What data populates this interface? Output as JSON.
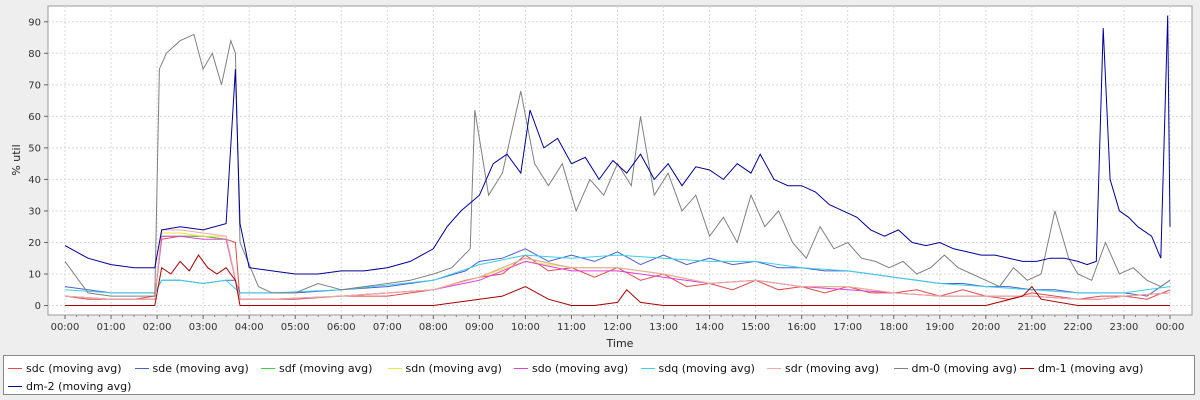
{
  "chart_data": {
    "type": "line",
    "title": "",
    "xlabel": "Time",
    "ylabel": "% util",
    "xlim": [
      0,
      24.2
    ],
    "ylim": [
      -3,
      95
    ],
    "grid": true,
    "legend_position": "bottom",
    "x_ticks": [
      "00:00",
      "01:00",
      "02:00",
      "03:00",
      "04:00",
      "05:00",
      "06:00",
      "07:00",
      "08:00",
      "09:00",
      "10:00",
      "11:00",
      "12:00",
      "13:00",
      "14:00",
      "15:00",
      "16:00",
      "17:00",
      "18:00",
      "19:00",
      "20:00",
      "21:00",
      "22:00",
      "23:00",
      "00:00"
    ],
    "y_ticks": [
      0,
      10,
      20,
      30,
      40,
      50,
      60,
      70,
      80,
      90
    ],
    "series": [
      {
        "name": "sdc (moving avg)",
        "color": "#e34a4a",
        "x": [
          0,
          0.5,
          1,
          1.5,
          1.95,
          2.1,
          2.5,
          3,
          3.5,
          3.7,
          3.8,
          4.5,
          5,
          6,
          7,
          8,
          8.7,
          9,
          9.5,
          10,
          10.5,
          11,
          11.5,
          12,
          12.5,
          13,
          13.5,
          14,
          14.5,
          15,
          15.5,
          16,
          16.5,
          17,
          17.5,
          18,
          18.5,
          19,
          19.5,
          20,
          20.5,
          21,
          21.5,
          22,
          22.5,
          23,
          23.5,
          24
        ],
        "y": [
          3,
          2,
          2,
          2,
          3,
          21,
          22,
          22,
          21,
          20,
          2,
          2,
          2,
          3,
          3,
          5,
          8,
          9,
          10,
          16,
          11,
          12,
          9,
          12,
          8,
          10,
          6,
          7,
          5,
          8,
          5,
          6,
          4,
          6,
          4,
          4,
          5,
          3,
          5,
          3,
          2,
          4,
          3,
          2,
          3,
          3,
          2,
          5
        ]
      },
      {
        "name": "sde (moving avg)",
        "color": "#4a5fd0",
        "x": [
          0,
          0.5,
          1,
          1.5,
          1.95,
          2.1,
          2.5,
          3,
          3.5,
          3.7,
          3.8,
          4.5,
          5,
          6,
          7,
          8,
          8.7,
          9,
          9.5,
          10,
          10.5,
          11,
          11.5,
          12,
          12.5,
          13,
          13.5,
          14,
          14.5,
          15,
          15.5,
          16,
          16.5,
          17,
          17.5,
          18,
          18.5,
          19,
          19.5,
          20,
          20.5,
          21,
          21.5,
          22,
          22.5,
          23,
          23.5,
          24
        ],
        "y": [
          6,
          5,
          4,
          4,
          4,
          8,
          8,
          7,
          8,
          8,
          4,
          4,
          4,
          5,
          6,
          8,
          11,
          14,
          15,
          18,
          14,
          16,
          14,
          17,
          13,
          16,
          13,
          15,
          13,
          14,
          12,
          12,
          11,
          11,
          10,
          9,
          8,
          7,
          7,
          6,
          6,
          5,
          5,
          4,
          4,
          4,
          3,
          8
        ]
      },
      {
        "name": "sdf (moving avg)",
        "color": "#3ed13e",
        "x": [
          0,
          1,
          1.95,
          2.1,
          2.5,
          3,
          3.5,
          3.8,
          4.5,
          6,
          8,
          9,
          10,
          11,
          12,
          13,
          14,
          15,
          16,
          17,
          18,
          19,
          20,
          21,
          22,
          22.5,
          23,
          24
        ],
        "y": [
          3,
          2,
          2,
          22,
          22,
          22,
          21,
          2,
          2,
          3,
          5,
          9,
          15,
          12,
          12,
          10,
          7,
          8,
          6,
          6,
          4,
          3,
          3,
          3,
          2,
          2,
          3,
          4
        ]
      },
      {
        "name": "sdn (moving avg)",
        "color": "#e8e83a",
        "x": [
          0,
          1,
          1.95,
          2.1,
          2.5,
          3,
          3.5,
          3.8,
          4.5,
          6,
          8,
          9,
          10,
          11,
          12,
          13,
          14,
          15,
          16,
          17,
          18,
          19,
          20,
          21,
          22,
          22.5,
          23,
          24
        ],
        "y": [
          3,
          2,
          2,
          23,
          23,
          22,
          22,
          2,
          2,
          3,
          5,
          9,
          14,
          12,
          12,
          10,
          7,
          8,
          6,
          6,
          4,
          3,
          3,
          3,
          2,
          2,
          3,
          4
        ]
      },
      {
        "name": "sdo (moving avg)",
        "color": "#e040e0",
        "x": [
          0,
          1,
          1.95,
          2.1,
          2.5,
          3,
          3.5,
          3.8,
          4.5,
          6,
          8,
          9,
          10,
          11,
          12,
          13,
          14,
          15,
          16,
          17,
          18,
          19,
          20,
          21,
          22,
          22.5,
          23,
          24
        ],
        "y": [
          3,
          2,
          2,
          22,
          22,
          21,
          21,
          2,
          2,
          3,
          5,
          8,
          14,
          11,
          11,
          9,
          7,
          8,
          6,
          5,
          4,
          3,
          3,
          3,
          2,
          2,
          3,
          4
        ]
      },
      {
        "name": "sdq (moving avg)",
        "color": "#3ad0e8",
        "x": [
          0,
          1,
          1.95,
          2.1,
          2.5,
          3,
          3.5,
          3.8,
          4.5,
          6,
          8,
          9,
          10,
          11,
          12,
          13,
          14,
          15,
          16,
          17,
          18,
          19,
          20,
          21,
          22,
          22.5,
          23,
          24
        ],
        "y": [
          5,
          4,
          4,
          8,
          8,
          7,
          8,
          4,
          4,
          5,
          8,
          13,
          16,
          15,
          16,
          15,
          14,
          14,
          12,
          11,
          9,
          7,
          6,
          5,
          4,
          4,
          4,
          6
        ]
      },
      {
        "name": "sdr (moving avg)",
        "color": "#f0a8a8",
        "x": [
          0,
          1,
          1.95,
          2.1,
          2.5,
          3,
          3.5,
          3.8,
          4.5,
          6,
          8,
          9,
          10,
          11,
          12,
          13,
          14,
          15,
          16,
          17,
          18,
          19,
          20,
          21,
          22,
          22.5,
          23,
          24
        ],
        "y": [
          3,
          2,
          2,
          24,
          24,
          23,
          22,
          2,
          2,
          3,
          5,
          9,
          15,
          12,
          12,
          10,
          7,
          8,
          6,
          6,
          4,
          3,
          3,
          3,
          2,
          2,
          3,
          4
        ]
      },
      {
        "name": "dm-0 (moving avg)",
        "color": "#808080",
        "x": [
          0,
          0.5,
          1,
          1.5,
          1.95,
          2.05,
          2.2,
          2.5,
          2.8,
          3,
          3.2,
          3.4,
          3.6,
          3.7,
          3.8,
          4.2,
          4.5,
          5,
          5.5,
          6,
          6.5,
          7,
          7.5,
          8,
          8.4,
          8.8,
          8.9,
          9.2,
          9.5,
          9.9,
          10.2,
          10.5,
          10.8,
          11.1,
          11.4,
          11.7,
          12,
          12.3,
          12.5,
          12.8,
          13.1,
          13.4,
          13.7,
          14,
          14.3,
          14.6,
          14.9,
          15.2,
          15.5,
          15.8,
          16.1,
          16.4,
          16.7,
          17,
          17.3,
          17.6,
          17.9,
          18.2,
          18.5,
          18.8,
          19.1,
          19.4,
          19.7,
          20,
          20.3,
          20.6,
          20.9,
          21.2,
          21.5,
          21.8,
          22,
          22.3,
          22.6,
          22.9,
          23.2,
          23.5,
          23.8,
          24
        ],
        "y": [
          14,
          4,
          3,
          3,
          3,
          75,
          80,
          84,
          86,
          75,
          80,
          70,
          84,
          80,
          20,
          6,
          4,
          4,
          7,
          5,
          6,
          7,
          8,
          10,
          12,
          18,
          62,
          35,
          42,
          68,
          45,
          38,
          45,
          30,
          40,
          35,
          45,
          38,
          60,
          35,
          42,
          30,
          35,
          22,
          28,
          20,
          35,
          25,
          30,
          20,
          15,
          25,
          18,
          20,
          15,
          14,
          12,
          14,
          10,
          12,
          16,
          12,
          10,
          8,
          6,
          12,
          8,
          10,
          30,
          15,
          10,
          8,
          20,
          10,
          12,
          8,
          6,
          8
        ]
      },
      {
        "name": "dm-1 (moving avg)",
        "color": "#aa0000",
        "x": [
          0,
          0.5,
          1,
          1.5,
          1.95,
          2.1,
          2.3,
          2.5,
          2.7,
          2.9,
          3.1,
          3.3,
          3.5,
          3.7,
          3.8,
          4.5,
          5,
          6,
          7,
          8,
          8.5,
          9,
          9.5,
          10,
          10.5,
          11,
          11.5,
          12,
          12.2,
          12.5,
          13,
          14,
          15,
          16,
          17,
          18,
          19,
          20,
          20.8,
          21,
          21.2,
          22,
          23,
          24
        ],
        "y": [
          0,
          0,
          0,
          0,
          0,
          12,
          10,
          14,
          11,
          16,
          12,
          10,
          12,
          8,
          0,
          0,
          0,
          0,
          0,
          0,
          1,
          2,
          3,
          6,
          2,
          0,
          0,
          1,
          5,
          1,
          0,
          0,
          0,
          0,
          0,
          0,
          0,
          0,
          3,
          6,
          2,
          0,
          0,
          0
        ]
      },
      {
        "name": "dm-2 (moving avg)",
        "color": "#00009a",
        "x": [
          0,
          0.5,
          1,
          1.5,
          1.95,
          2.1,
          2.5,
          3,
          3.5,
          3.7,
          3.8,
          4,
          4.5,
          5,
          5.5,
          6,
          6.5,
          7,
          7.5,
          8,
          8.3,
          8.6,
          9,
          9.3,
          9.6,
          9.9,
          10.1,
          10.4,
          10.7,
          11,
          11.3,
          11.6,
          11.9,
          12.2,
          12.5,
          12.8,
          13.1,
          13.4,
          13.7,
          14,
          14.3,
          14.6,
          14.9,
          15.1,
          15.4,
          15.7,
          16,
          16.3,
          16.6,
          16.9,
          17.2,
          17.5,
          17.8,
          18.1,
          18.4,
          18.7,
          19,
          19.3,
          19.6,
          19.9,
          20.2,
          20.5,
          20.8,
          21.1,
          21.4,
          21.7,
          22,
          22.2,
          22.4,
          22.55,
          22.7,
          22.9,
          23.1,
          23.3,
          23.6,
          23.8,
          23.95,
          24
        ],
        "y": [
          19,
          15,
          13,
          12,
          12,
          24,
          25,
          24,
          26,
          75,
          26,
          12,
          11,
          10,
          10,
          11,
          11,
          12,
          14,
          18,
          25,
          30,
          35,
          45,
          48,
          42,
          62,
          50,
          53,
          45,
          47,
          40,
          46,
          42,
          48,
          40,
          45,
          38,
          44,
          43,
          40,
          45,
          42,
          48,
          40,
          38,
          38,
          36,
          32,
          30,
          28,
          24,
          22,
          24,
          20,
          19,
          20,
          18,
          17,
          16,
          16,
          15,
          14,
          14,
          15,
          15,
          14,
          13,
          14,
          88,
          40,
          30,
          28,
          25,
          22,
          15,
          92,
          25
        ]
      }
    ]
  }
}
